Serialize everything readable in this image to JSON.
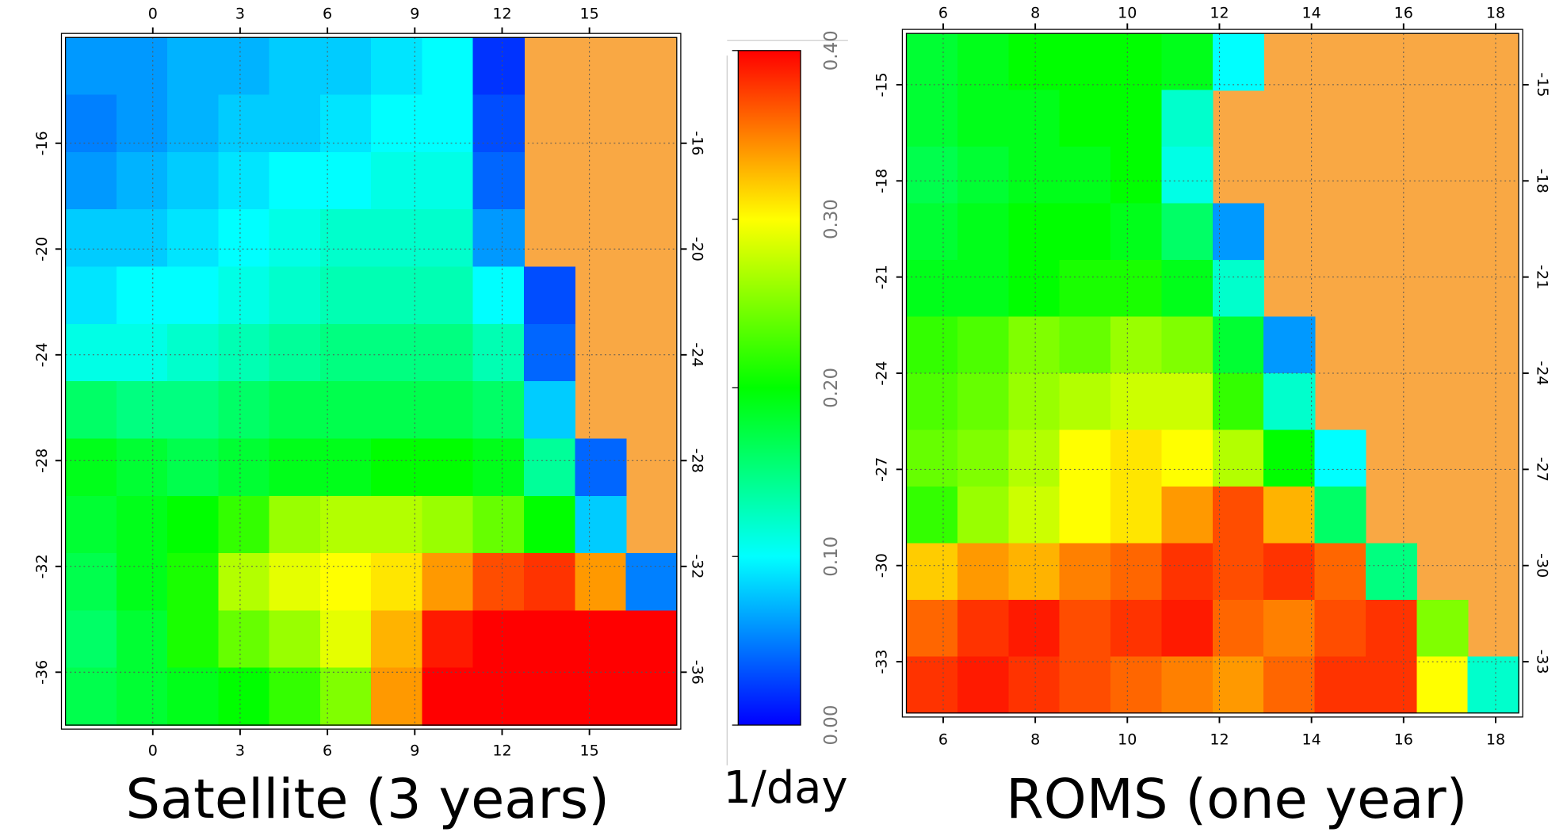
{
  "chart_data": [
    {
      "type": "heatmap",
      "title": "Satellite (3 years)",
      "xlim": [
        -3,
        18
      ],
      "ylim": [
        -38,
        -12
      ],
      "xticks": [
        0,
        3,
        6,
        9,
        12,
        15
      ],
      "yticks": [
        -16,
        -20,
        -24,
        -28,
        -32,
        -36
      ],
      "land_color": "#f9a844",
      "values": [
        [
          0.06,
          0.06,
          0.07,
          0.07,
          0.08,
          0.08,
          0.09,
          0.1,
          0.02,
          null,
          null,
          null
        ],
        [
          0.05,
          0.06,
          0.07,
          0.08,
          0.08,
          0.09,
          0.1,
          0.1,
          0.03,
          null,
          null,
          null
        ],
        [
          0.06,
          0.07,
          0.08,
          0.09,
          0.1,
          0.1,
          0.11,
          0.11,
          0.04,
          null,
          null,
          null
        ],
        [
          0.08,
          0.08,
          0.09,
          0.1,
          0.11,
          0.12,
          0.12,
          0.12,
          0.06,
          null,
          null,
          null
        ],
        [
          0.09,
          0.1,
          0.1,
          0.11,
          0.12,
          0.13,
          0.13,
          0.13,
          0.1,
          0.03,
          null,
          null
        ],
        [
          0.11,
          0.11,
          0.12,
          0.13,
          0.14,
          0.15,
          0.15,
          0.15,
          0.13,
          0.04,
          null,
          null
        ],
        [
          0.16,
          0.15,
          0.15,
          0.16,
          0.17,
          0.17,
          0.17,
          0.17,
          0.16,
          0.08,
          null,
          null
        ],
        [
          0.19,
          0.18,
          0.17,
          0.18,
          0.19,
          0.19,
          0.2,
          0.2,
          0.19,
          0.14,
          0.04,
          null
        ],
        [
          0.18,
          0.19,
          0.2,
          0.22,
          0.26,
          0.27,
          0.27,
          0.26,
          0.24,
          0.2,
          0.08,
          null
        ],
        [
          0.17,
          0.19,
          0.21,
          0.27,
          0.29,
          0.3,
          0.31,
          0.34,
          0.37,
          0.38,
          0.34,
          0.05
        ],
        [
          0.16,
          0.18,
          0.21,
          0.24,
          0.26,
          0.29,
          0.33,
          0.39,
          0.4,
          0.4,
          0.4,
          0.4
        ],
        [
          0.17,
          0.18,
          0.19,
          0.2,
          0.22,
          0.25,
          0.34,
          0.4,
          0.4,
          0.4,
          0.4,
          0.4
        ]
      ]
    },
    {
      "type": "heatmap",
      "title": "ROMS (one year)",
      "xlim": [
        5.2,
        18.5
      ],
      "ylim": [
        -34.6,
        -13.4
      ],
      "xticks": [
        6,
        8,
        10,
        12,
        14,
        16,
        18
      ],
      "yticks": [
        -15,
        -18,
        -21,
        -24,
        -27,
        -30,
        -33
      ],
      "land_color": "#f9a844",
      "values": [
        [
          0.18,
          0.19,
          0.2,
          0.2,
          0.2,
          0.19,
          0.1,
          null,
          null,
          null,
          null,
          null
        ],
        [
          0.18,
          0.19,
          0.19,
          0.2,
          0.2,
          0.12,
          null,
          null,
          null,
          null,
          null,
          null
        ],
        [
          0.17,
          0.18,
          0.19,
          0.19,
          0.2,
          0.11,
          null,
          null,
          null,
          null,
          null,
          null
        ],
        [
          0.18,
          0.19,
          0.2,
          0.2,
          0.19,
          0.16,
          0.06,
          null,
          null,
          null,
          null,
          null
        ],
        [
          0.19,
          0.19,
          0.2,
          0.21,
          0.21,
          0.19,
          0.12,
          null,
          null,
          null,
          null,
          null
        ],
        [
          0.22,
          0.23,
          0.25,
          0.24,
          0.26,
          0.25,
          0.18,
          0.06,
          null,
          null,
          null,
          null
        ],
        [
          0.23,
          0.24,
          0.26,
          0.27,
          0.28,
          0.28,
          0.22,
          0.12,
          null,
          null,
          null,
          null
        ],
        [
          0.24,
          0.25,
          0.27,
          0.3,
          0.31,
          0.3,
          0.27,
          0.2,
          0.1,
          null,
          null,
          null
        ],
        [
          0.22,
          0.26,
          0.28,
          0.3,
          0.31,
          0.34,
          0.37,
          0.33,
          0.16,
          null,
          null,
          null
        ],
        [
          0.32,
          0.34,
          0.33,
          0.35,
          0.36,
          0.38,
          0.37,
          0.38,
          0.36,
          0.15,
          null,
          null
        ],
        [
          0.36,
          0.38,
          0.39,
          0.37,
          0.38,
          0.39,
          0.36,
          0.35,
          0.37,
          0.38,
          0.25,
          null
        ],
        [
          0.38,
          0.39,
          0.38,
          0.37,
          0.36,
          0.35,
          0.34,
          0.36,
          0.38,
          0.38,
          0.3,
          0.12
        ]
      ]
    },
    {
      "type": "colorbar",
      "label": "1/day",
      "ylim": [
        0,
        0.4
      ],
      "yticks": [
        {
          "value": 0,
          "label": "0.00"
        },
        {
          "value": 0.1,
          "label": "0.10"
        },
        {
          "value": 0.2,
          "label": "0.20"
        },
        {
          "value": 0.3,
          "label": "0.30"
        },
        {
          "value": 0.4,
          "label": "0.40"
        }
      ],
      "colormap": [
        "#0000ff",
        "#00ffff",
        "#00ff00",
        "#ffff00",
        "#ff0000"
      ]
    }
  ]
}
